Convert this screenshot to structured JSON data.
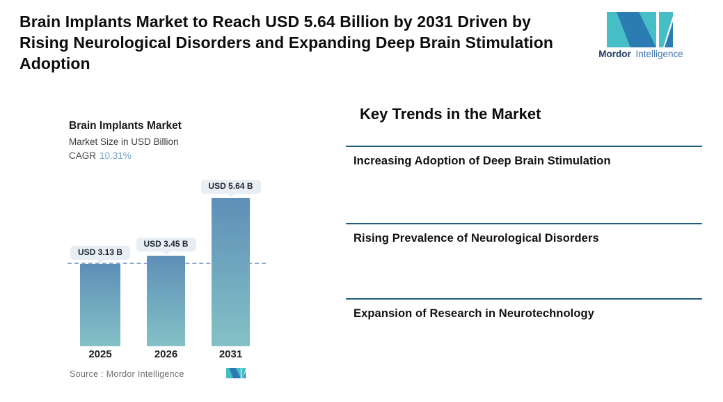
{
  "header": {
    "title_lines": [
      "Brain Implants Market to Reach USD 5.64 Billion by 2031 Driven by",
      "Rising Neurological Disorders and Expanding Deep Brain Stimulation",
      "Adoption"
    ],
    "logo": {
      "brand_bold": "Mordor",
      "brand_light": "Intelligence",
      "colors": {
        "teal": "#45bec6",
        "blue": "#2c7cb4",
        "navy": "#1d3a63",
        "text_light": "#4377b5"
      }
    }
  },
  "chart": {
    "title": "Brain Implants Market",
    "subtitle": "Market Size in USD Billion",
    "cagr_label": "CAGR",
    "cagr_value": "10.31%",
    "source_label": "Source :  Mordor Intelligence"
  },
  "chart_data": {
    "type": "bar",
    "categories": [
      "2025",
      "2026",
      "2031"
    ],
    "values": [
      3.13,
      3.45,
      5.64
    ],
    "bar_labels": [
      "USD 3.13 B",
      "USD 3.45 B",
      "USD 5.64 B"
    ],
    "title": "Brain Implants Market",
    "subtitle": "Market Size in USD Billion",
    "cagr": "10.31%",
    "ylim": [
      0,
      6
    ],
    "baseline_marker_value": 3.13,
    "grid": false,
    "legend": "none",
    "colors": {
      "bar_top": "#5e8fb8",
      "bar_bottom": "#84c1c6",
      "dashed_line": "#8ca6ce",
      "pill_bg": "#e8eef3",
      "cagr_value": "#74a3cb"
    }
  },
  "trends": {
    "heading": "Key Trends in the Market",
    "accent_line_color": "#1e607f",
    "items": [
      "Increasing Adoption of Deep Brain Stimulation",
      "Rising Prevalence of Neurological Disorders",
      "Expansion of Research in Neurotechnology"
    ]
  }
}
